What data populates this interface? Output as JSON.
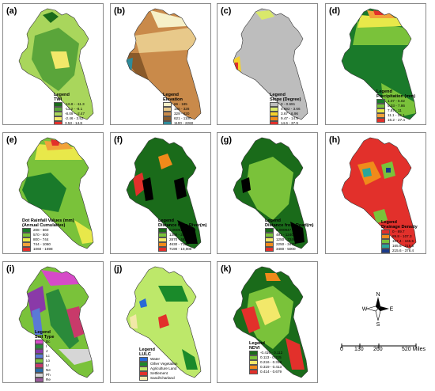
{
  "panels": [
    {
      "label": "(a)",
      "legend_title": [
        "Legend",
        "TWI"
      ],
      "classes": [
        {
          "text": "-16.8 - -11.3",
          "color": "#1a6b1a"
        },
        {
          "text": "-11.2 - -8.1",
          "color": "#5aa53a"
        },
        {
          "text": "-8.09 - -2.47",
          "color": "#a9d65c"
        },
        {
          "text": "-2.46 - 3.52",
          "color": "#f2e86a"
        },
        {
          "text": "3.53 - 14.8",
          "color": "#e2302b"
        }
      ]
    },
    {
      "label": "(b)",
      "legend_title": [
        "Legend",
        "Elevation"
      ],
      "classes": [
        {
          "text": "66 - 185",
          "color": "#f6f0c8"
        },
        {
          "text": "186 - 328",
          "color": "#e8c98a"
        },
        {
          "text": "329 - 620",
          "color": "#c98a4a"
        },
        {
          "text": "621 - 1100",
          "color": "#8a5a2a"
        },
        {
          "text": "1100 - 2260",
          "color": "#2e8b9a"
        }
      ]
    },
    {
      "label": "(c)",
      "legend_title": [
        "Legend",
        "Slope (Degree)"
      ],
      "classes": [
        {
          "text": "0 - 0.691",
          "color": "#bdbdbd"
        },
        {
          "text": "0.692 - 3.66",
          "color": "#d9e86a"
        },
        {
          "text": "3.67 - 6.96",
          "color": "#f6d12a"
        },
        {
          "text": "9.47 - 14.5",
          "color": "#f08a1a"
        },
        {
          "text": "14.6 - 37.9",
          "color": "#e2302b"
        }
      ]
    },
    {
      "label": "(d)",
      "legend_title": [
        "Legend",
        "Precipitation (mm)"
      ],
      "classes": [
        {
          "text": "1.07 - 5.02",
          "color": "#1a7a2a"
        },
        {
          "text": "5.03 - 7.86",
          "color": "#7ac23a"
        },
        {
          "text": "7.87 - 11",
          "color": "#e8e84a"
        },
        {
          "text": "11.1 - 16.1",
          "color": "#f2a23a"
        },
        {
          "text": "16.2 - 27.4",
          "color": "#e2302b"
        }
      ]
    },
    {
      "label": "(e)",
      "legend_title": [
        "Dot Rainfall Values (mm)",
        "(Annual Cumulative)"
      ],
      "classes": [
        {
          "text": "208 - 560",
          "color": "#1a7a2a"
        },
        {
          "text": "570 - 800",
          "color": "#7ac23a"
        },
        {
          "text": "800 - 744",
          "color": "#e8e84a"
        },
        {
          "text": "744 - 1060",
          "color": "#f2a23a"
        },
        {
          "text": "1060 - 1698",
          "color": "#e2302b"
        }
      ]
    },
    {
      "label": "(f)",
      "legend_title": [
        "Legend",
        "Distance from River(m)"
      ],
      "classes": [
        {
          "text": "0.000918 - 1290",
          "color": "#1a6b1a"
        },
        {
          "text": "1300 - 2860",
          "color": "#7ac23a"
        },
        {
          "text": "2870 - 4620",
          "color": "#f2e86a"
        },
        {
          "text": "4630 - 7180",
          "color": "#f08a1a"
        },
        {
          "text": "7190 - 10,000",
          "color": "#e2302b"
        }
      ]
    },
    {
      "label": "(g)",
      "legend_title": [
        "Legend",
        "Distance from Road(m)"
      ],
      "classes": [
        {
          "text": "0.000947 - 490",
          "color": "#1a6b1a"
        },
        {
          "text": "491 - 1240",
          "color": "#7ac23a"
        },
        {
          "text": "1250 - 2240",
          "color": "#f2e86a"
        },
        {
          "text": "2250 - 3470",
          "color": "#f08a1a"
        },
        {
          "text": "3480 - 5000",
          "color": "#e2302b"
        }
      ]
    },
    {
      "label": "(h)",
      "legend_title": [
        "Legend",
        "Drainage Density"
      ],
      "classes": [
        {
          "text": "0 - 89.7",
          "color": "#e2302b"
        },
        {
          "text": "89.8 - 107.3",
          "color": "#f08a1a"
        },
        {
          "text": "107.4 - 165.5",
          "color": "#7ac23a"
        },
        {
          "text": "165.6 - 215.5",
          "color": "#2aa69a"
        },
        {
          "text": "215.6 - 378.4",
          "color": "#1a3a8a"
        }
      ]
    },
    {
      "label": "(i)",
      "legend_title": [
        "Legend",
        "Soil Type"
      ],
      "classes": [
        {
          "text": "Bc",
          "color": "#d64ac8"
        },
        {
          "text": "I",
          "color": "#2a8a3a"
        },
        {
          "text": "J",
          "color": "#8a3aa8"
        },
        {
          "text": "Lc",
          "color": "#5a7ad6"
        },
        {
          "text": "Lo",
          "color": "#7ac23a"
        },
        {
          "text": "Lr",
          "color": "#c83a6a"
        },
        {
          "text": "Ne",
          "color": "#2a6aa8"
        },
        {
          "text": "Ph",
          "color": "#d6d6d6"
        },
        {
          "text": "Re",
          "color": "#9a5a9a"
        },
        {
          "text": "Zo",
          "color": "#3ab05a"
        }
      ]
    },
    {
      "label": "(j)",
      "legend_title": [
        "Legend",
        "LULC"
      ],
      "classes": [
        {
          "text": "Water",
          "color": "#2a6ad6"
        },
        {
          "text": "Other Vegetation",
          "color": "#1a8a2a"
        },
        {
          "text": "Agriculture Land",
          "color": "#bde86a"
        },
        {
          "text": "Settlement",
          "color": "#e2302b"
        },
        {
          "text": "Sand/Charland",
          "color": "#f2e8a8"
        }
      ]
    },
    {
      "label": "(k)",
      "legend_title": [
        "Legend",
        "NDVI"
      ],
      "classes": [
        {
          "text": "-0.416 - 0.112",
          "color": "#1a6b1a"
        },
        {
          "text": "0.113 - 0.215",
          "color": "#7ac23a"
        },
        {
          "text": "0.216 - 0.318",
          "color": "#f2e86a"
        },
        {
          "text": "0.319 - 0.413",
          "color": "#f08a1a"
        },
        {
          "text": "0.414 - 0.679",
          "color": "#e2302b"
        }
      ]
    }
  ],
  "compass": {
    "N": "N",
    "S": "S",
    "E": "E",
    "W": "W"
  },
  "scale": {
    "ticks": [
      "0",
      "130",
      "260",
      "520 Miles"
    ]
  }
}
